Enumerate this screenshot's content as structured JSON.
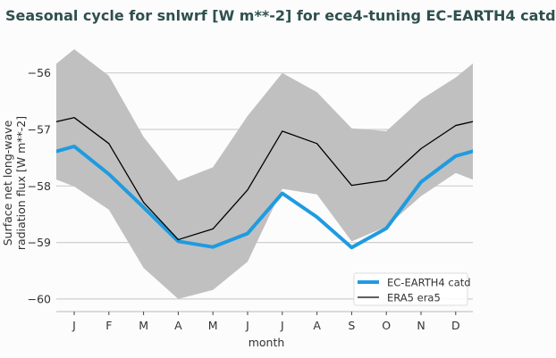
{
  "chart_data": {
    "type": "line",
    "title": "Seasonal cycle for snlwrf [W m**-2] for ece4-tuning EC-EARTH4 catd",
    "xlabel": "month",
    "ylabel": [
      "Surface net long-wave",
      "radiation flux [W m**-2]"
    ],
    "categories": [
      "J",
      "F",
      "M",
      "A",
      "M",
      "J",
      "J",
      "A",
      "S",
      "O",
      "N",
      "D"
    ],
    "yticks": [
      -56,
      -57,
      -58,
      -59,
      -60
    ],
    "ylim": [
      -60.22,
      -55.6
    ],
    "grid": "horizontal",
    "legend_position": "bottom-right",
    "band": {
      "upper": [
        -55.58,
        -56.05,
        -57.13,
        -57.91,
        -57.67,
        -56.76,
        -56.0,
        -56.34,
        -56.98,
        -57.03,
        -56.47,
        -56.08
      ],
      "lower": [
        -58.01,
        -58.42,
        -59.45,
        -60.0,
        -59.84,
        -59.34,
        -58.05,
        -58.15,
        -58.98,
        -58.72,
        -58.18,
        -57.77
      ],
      "color": "#c0c0c0"
    },
    "series": [
      {
        "name": "EC-EARTH4 catd",
        "color": "#1f9be0",
        "values": [
          -57.3,
          -57.79,
          -58.38,
          -58.98,
          -59.08,
          -58.84,
          -58.13,
          -58.55,
          -59.09,
          -58.75,
          -57.93,
          -57.47
        ]
      },
      {
        "name": "ERA5 era5",
        "color": "#000000",
        "values": [
          -56.79,
          -57.25,
          -58.29,
          -58.95,
          -58.76,
          -58.07,
          -57.03,
          -57.25,
          -57.99,
          -57.9,
          -57.34,
          -56.93
        ]
      }
    ]
  }
}
